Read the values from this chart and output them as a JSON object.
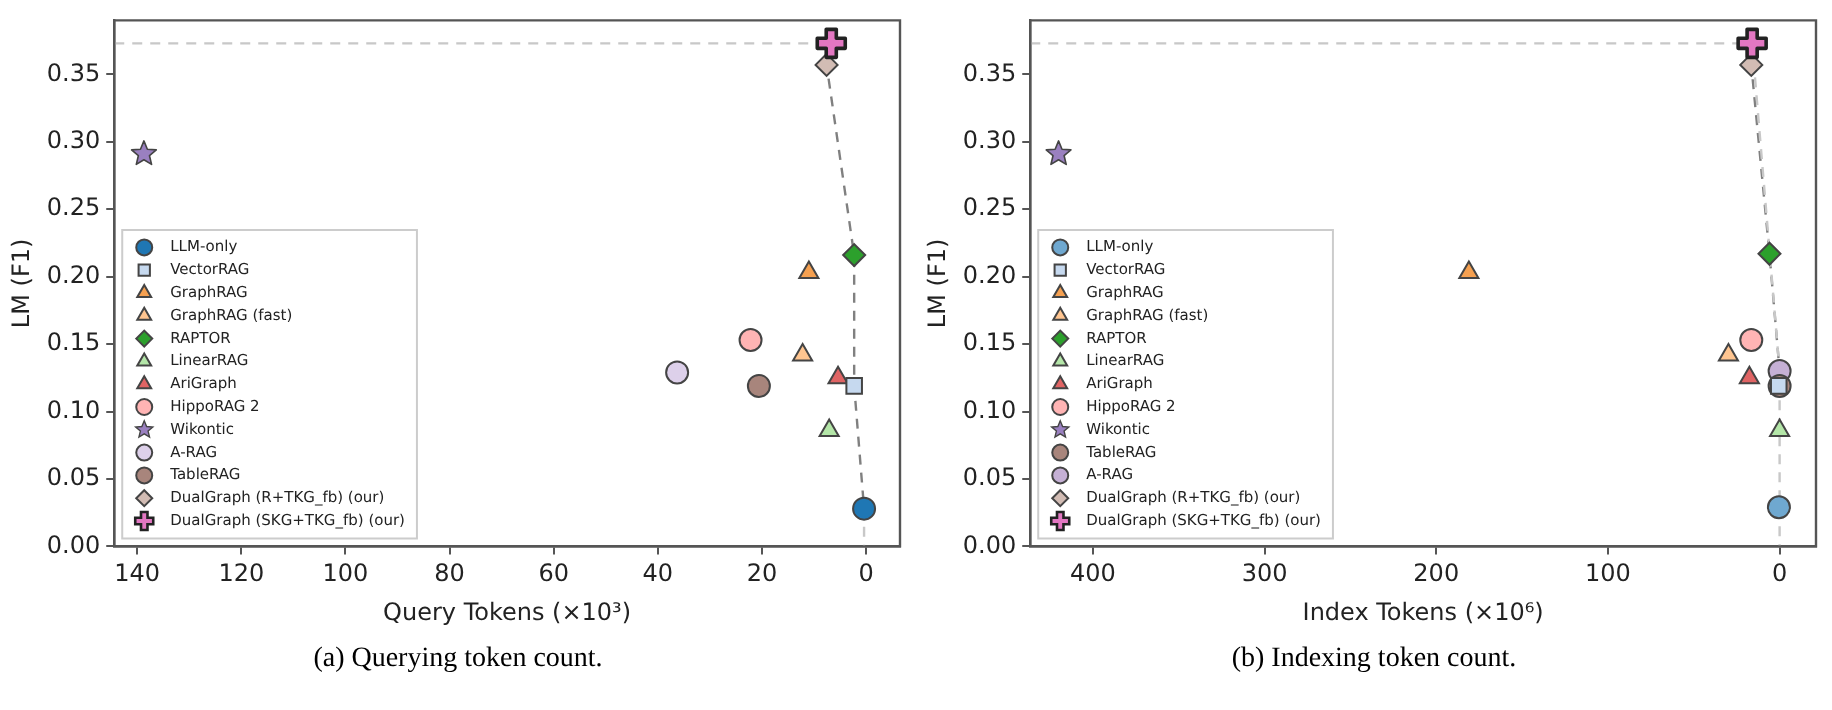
{
  "chart_data": [
    {
      "type": "scatter",
      "xlabel": "Query Tokens (×10³)",
      "ylabel": "LM (F1)",
      "xlim": [
        144.4,
        -6.5
      ],
      "xticks": [
        140,
        120,
        100,
        80,
        60,
        40,
        20,
        0
      ],
      "ylim": [
        0,
        0.39
      ],
      "yticks": [
        {
          "value": 0,
          "label": "0.00"
        },
        {
          "value": 0.05,
          "label": "0.05"
        },
        {
          "value": 0.1,
          "label": "0.10"
        },
        {
          "value": 0.15,
          "label": "0.15"
        },
        {
          "value": 0.2,
          "label": "0.20"
        },
        {
          "value": 0.25,
          "label": "0.25"
        },
        {
          "value": 0.3,
          "label": "0.30"
        },
        {
          "value": 0.35,
          "label": "0.35"
        }
      ],
      "grid": false,
      "legend": "bottom left",
      "annotations": [
        "(a) Querying token count."
      ],
      "series": [
        {
          "type": "line",
          "color": "#c8c8c8",
          "marker": "none",
          "line_style": "dashed",
          "x": [
            144.4,
            6.7
          ],
          "values": [
            0.373,
            0.373
          ]
        },
        {
          "type": "line",
          "color": "#c8c8c8",
          "marker": "none",
          "line_style": "dashed",
          "x": [
            0.4,
            0.4
          ],
          "values": [
            0.028,
            0
          ]
        },
        {
          "type": "line",
          "color": "#808080",
          "marker": "none",
          "line_style": "dashed",
          "x": [
            6.7,
            7.6,
            2.3,
            2.3,
            0.4
          ],
          "values": [
            0.373,
            0.357,
            0.216,
            0.119,
            0.028
          ]
        },
        {
          "name": "LLM-only",
          "color": "#1f77b4",
          "marker": "circle",
          "x": [
            0.4
          ],
          "values": [
            0.028
          ]
        },
        {
          "name": "VectorRAG",
          "color": "#c6d9ef",
          "marker": "square",
          "x": [
            2.3
          ],
          "values": [
            0.119
          ]
        },
        {
          "name": "GraphRAG",
          "color": "#f5a050",
          "marker": "triangle",
          "x": [
            11.0
          ],
          "values": [
            0.203
          ]
        },
        {
          "name": "GraphRAG (fast)",
          "color": "#ffc590",
          "marker": "triangle",
          "x": [
            12.2
          ],
          "values": [
            0.142
          ]
        },
        {
          "name": "RAPTOR",
          "color": "#2ca02c",
          "marker": "diamond",
          "x": [
            2.3
          ],
          "values": [
            0.216
          ]
        },
        {
          "name": "LinearRAG",
          "color": "#b4e6a8",
          "marker": "triangle",
          "x": [
            7.1
          ],
          "values": [
            0.086
          ]
        },
        {
          "name": "AriGraph",
          "color": "#e06464",
          "marker": "triangle",
          "x": [
            5.4
          ],
          "values": [
            0.125
          ]
        },
        {
          "name": "HippoRAG 2",
          "color": "#ffb4b4",
          "marker": "circle",
          "x": [
            22.2
          ],
          "values": [
            0.153
          ]
        },
        {
          "name": "Wikontic",
          "color": "#9a80c0",
          "marker": "star",
          "x": [
            138.7
          ],
          "values": [
            0.291
          ]
        },
        {
          "name": "A-RAG",
          "color": "#ddd0ea",
          "marker": "circle",
          "x": [
            36.3
          ],
          "values": [
            0.129
          ]
        },
        {
          "name": "TableRAG",
          "color": "#a8857c",
          "marker": "circle",
          "x": [
            20.6
          ],
          "values": [
            0.119
          ]
        },
        {
          "name": "DualGraph (R+TKG_fb) (our)",
          "color": "#d2bcb4",
          "marker": "diamond",
          "x": [
            7.6
          ],
          "values": [
            0.357
          ]
        },
        {
          "name": "DualGraph (SKG+TKG_fb) (our)",
          "color": "#e377c2",
          "marker": "cross",
          "x": [
            6.7
          ],
          "values": [
            0.373
          ]
        }
      ]
    },
    {
      "type": "scatter",
      "xlabel": "Index Tokens (×10⁶)",
      "ylabel": "LM (F1)",
      "xlim": [
        436.5,
        -21.2
      ],
      "xticks": [
        400,
        300,
        200,
        100,
        0
      ],
      "ylim": [
        0,
        0.39
      ],
      "yticks": [
        {
          "value": 0,
          "label": "0.00"
        },
        {
          "value": 0.05,
          "label": "0.05"
        },
        {
          "value": 0.1,
          "label": "0.10"
        },
        {
          "value": 0.15,
          "label": "0.15"
        },
        {
          "value": 0.2,
          "label": "0.20"
        },
        {
          "value": 0.25,
          "label": "0.25"
        },
        {
          "value": 0.3,
          "label": "0.30"
        },
        {
          "value": 0.35,
          "label": "0.35"
        }
      ],
      "grid": false,
      "legend": "bottom left",
      "annotations": [
        "(b) Indexing token count."
      ],
      "series": [
        {
          "type": "line",
          "color": "#c8c8c8",
          "marker": "none",
          "line_style": "dashed",
          "x": [
            436.5,
            16,
            0,
            0
          ],
          "values": [
            0.373,
            0.373,
            0.13,
            0
          ]
        },
        {
          "type": "line",
          "color": "#808080",
          "marker": "none",
          "line_style": "dashed",
          "x": [
            16,
            16.5,
            5.9,
            0
          ],
          "values": [
            0.373,
            0.357,
            0.217,
            0.13
          ]
        },
        {
          "name": "LLM-only",
          "color": "#6fa8d0",
          "marker": "circle",
          "x": [
            0.4
          ],
          "values": [
            0.029
          ]
        },
        {
          "name": "VectorRAG",
          "color": "#c6d9ef",
          "marker": "square",
          "x": [
            0.5
          ],
          "values": [
            0.119
          ]
        },
        {
          "name": "GraphRAG",
          "color": "#f5a050",
          "marker": "triangle",
          "x": [
            181
          ],
          "values": [
            0.203
          ]
        },
        {
          "name": "GraphRAG (fast)",
          "color": "#ffc590",
          "marker": "triangle",
          "x": [
            29.8
          ],
          "values": [
            0.142
          ]
        },
        {
          "name": "RAPTOR",
          "color": "#2ca02c",
          "marker": "diamond",
          "x": [
            5.9
          ],
          "values": [
            0.217
          ]
        },
        {
          "name": "LinearRAG",
          "color": "#b4e6a8",
          "marker": "triangle",
          "x": [
            0
          ],
          "values": [
            0.086
          ]
        },
        {
          "name": "AriGraph",
          "color": "#e06464",
          "marker": "triangle",
          "x": [
            17.6
          ],
          "values": [
            0.125
          ]
        },
        {
          "name": "HippoRAG 2",
          "color": "#ffb4b4",
          "marker": "circle",
          "x": [
            16.5
          ],
          "values": [
            0.153
          ]
        },
        {
          "name": "Wikontic",
          "color": "#9a80c0",
          "marker": "star",
          "x": [
            420
          ],
          "values": [
            0.291
          ]
        },
        {
          "name": "TableRAG",
          "color": "#a8857c",
          "marker": "circle",
          "x": [
            0
          ],
          "values": [
            0.119
          ]
        },
        {
          "name": "A-RAG",
          "color": "#c5b0d5",
          "marker": "circle",
          "x": [
            0
          ],
          "values": [
            0.13
          ]
        },
        {
          "name": "DualGraph (R+TKG_fb) (our)",
          "color": "#d2bcb4",
          "marker": "diamond",
          "x": [
            16.5
          ],
          "values": [
            0.357
          ]
        },
        {
          "name": "DualGraph (SKG+TKG_fb) (our)",
          "color": "#e377c2",
          "marker": "cross",
          "x": [
            16
          ],
          "values": [
            0.373
          ]
        }
      ]
    }
  ]
}
